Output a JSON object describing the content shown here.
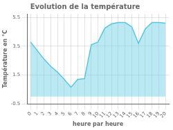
{
  "chart_data": {
    "type": "area",
    "title": "Evolution de la température",
    "x_label": "heure par heure",
    "y_label": "Température en °C",
    "x": [
      0,
      1,
      2,
      3,
      4,
      5,
      6,
      7,
      8,
      9,
      10,
      11,
      12,
      13,
      14,
      15,
      16,
      17,
      18,
      19,
      20
    ],
    "values": [
      3.8,
      3.2,
      2.6,
      2.1,
      1.7,
      1.2,
      0.65,
      1.2,
      1.25,
      3.6,
      3.8,
      4.75,
      5.05,
      5.15,
      5.15,
      4.85,
      3.7,
      4.7,
      5.15,
      5.15,
      5.1
    ],
    "color": "#55c8e0",
    "xlim": [
      -0.5,
      20.5
    ],
    "xticks": [
      0,
      1,
      2,
      3,
      4,
      5,
      6,
      7,
      8,
      9,
      10,
      11,
      12,
      13,
      14,
      15,
      16,
      17,
      18,
      19,
      20
    ],
    "ylim": [
      -0.5,
      5.75
    ],
    "yticks": [
      -0.5,
      1.5,
      3.5,
      5.5
    ],
    "grid": true
  }
}
